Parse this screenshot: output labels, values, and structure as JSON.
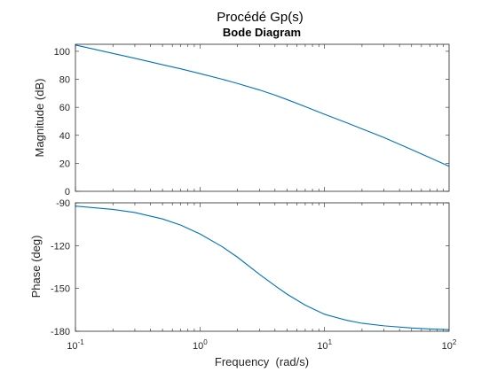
{
  "figure": {
    "title": "Procédé Gp(s)",
    "subtitle": "Bode Diagram",
    "xlabel": "Frequency  (rad/s)"
  },
  "chart_data": [
    {
      "type": "line",
      "panel": "magnitude",
      "ylabel": "Magnitude (dB)",
      "xscale": "log",
      "xlim": [
        0.1,
        100
      ],
      "ylim": [
        0,
        105
      ],
      "yticks": [
        0,
        20,
        40,
        60,
        80,
        100
      ],
      "ytick_labels": [
        "0",
        "20",
        "40",
        "60",
        "80",
        "100"
      ],
      "grid": false,
      "series": [
        {
          "color": "#0072BD",
          "x": [
            0.1,
            0.2,
            0.3,
            0.5,
            0.7,
            1,
            1.5,
            2,
            3,
            4,
            5,
            7,
            10,
            15,
            20,
            30,
            50,
            70,
            100
          ],
          "y": [
            104.5,
            98.5,
            95.0,
            90.4,
            87.5,
            84.1,
            80.1,
            77.0,
            72.4,
            68.7,
            65.5,
            60.5,
            55.0,
            49.0,
            44.6,
            38.4,
            29.8,
            24.0,
            17.9
          ]
        }
      ]
    },
    {
      "type": "line",
      "panel": "phase",
      "ylabel": "Phase (deg)",
      "xscale": "log",
      "xlim": [
        0.1,
        100
      ],
      "ylim": [
        -180,
        -90
      ],
      "yticks": [
        -90,
        -120,
        -150,
        -180
      ],
      "ytick_labels": [
        "-90",
        "-120",
        "-150",
        "-180"
      ],
      "xticks": [
        0.1,
        1,
        10,
        100
      ],
      "xtick_labels": [
        {
          "base": "10",
          "exp": "-1"
        },
        {
          "base": "10",
          "exp": "0"
        },
        {
          "base": "10",
          "exp": "1"
        },
        {
          "base": "10",
          "exp": "2"
        }
      ],
      "grid": false,
      "series": [
        {
          "color": "#0072BD",
          "x": [
            0.1,
            0.2,
            0.3,
            0.5,
            0.7,
            1,
            1.5,
            2,
            3,
            4,
            5,
            7,
            10,
            15,
            20,
            30,
            50,
            70,
            100
          ],
          "y": [
            -92.3,
            -94.6,
            -96.8,
            -101.3,
            -105.6,
            -111.8,
            -120.6,
            -128.1,
            -140.1,
            -148.1,
            -154.0,
            -161.7,
            -168.1,
            -172.3,
            -174.4,
            -176.2,
            -177.7,
            -178.4,
            -178.9
          ]
        }
      ]
    }
  ]
}
